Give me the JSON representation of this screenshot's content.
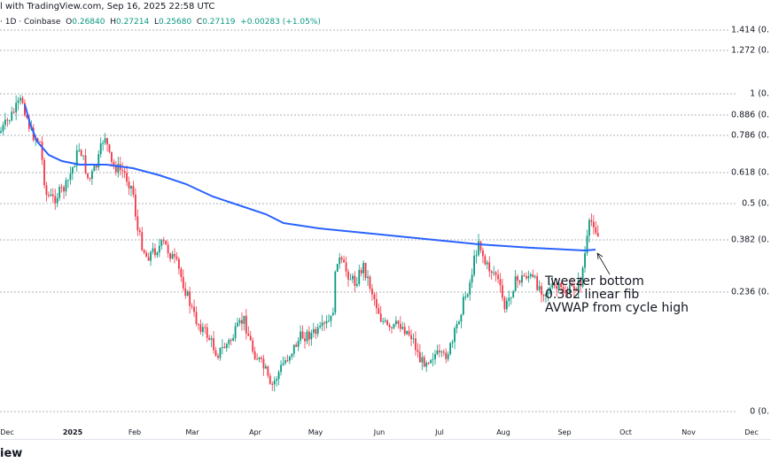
{
  "header": {
    "source": "l with TradingView.com, Sep 16, 2025 22:58 UTC",
    "symbol": "· 1D · Coinbase",
    "ohlc": {
      "o_label": "O",
      "o": "0.26840",
      "h_label": "H",
      "h": "0.27214",
      "l_label": "L",
      "l": "0.25680",
      "c_label": "C",
      "c": "0.27119",
      "change": "+0.00283 (+1.05%)"
    }
  },
  "fib_levels": [
    {
      "label": "1.414 (0."
    },
    {
      "label": "1.272 (0."
    },
    {
      "label": "1 (0."
    },
    {
      "label": "0.886 (0."
    },
    {
      "label": "0.786 (0."
    },
    {
      "label": "0.618 (0."
    },
    {
      "label": "0.5 (0."
    },
    {
      "label": "0.382 (0."
    },
    {
      "label": "0.236 (0."
    },
    {
      "label": "0 (0."
    }
  ],
  "x_axis": [
    "Dec",
    "2025",
    "Feb",
    "Mar",
    "Apr",
    "May",
    "Jun",
    "Jul",
    "Aug",
    "Sep",
    "Oct",
    "Nov",
    "Dec"
  ],
  "annotation": "Tweezer bottom\n0.382 linear fib\nAVWAP from cycle high",
  "logo": "iew",
  "colors": {
    "up": "#089981",
    "down": "#f23645",
    "avwap": "#2962ff",
    "fib_line": "#787b86"
  }
}
